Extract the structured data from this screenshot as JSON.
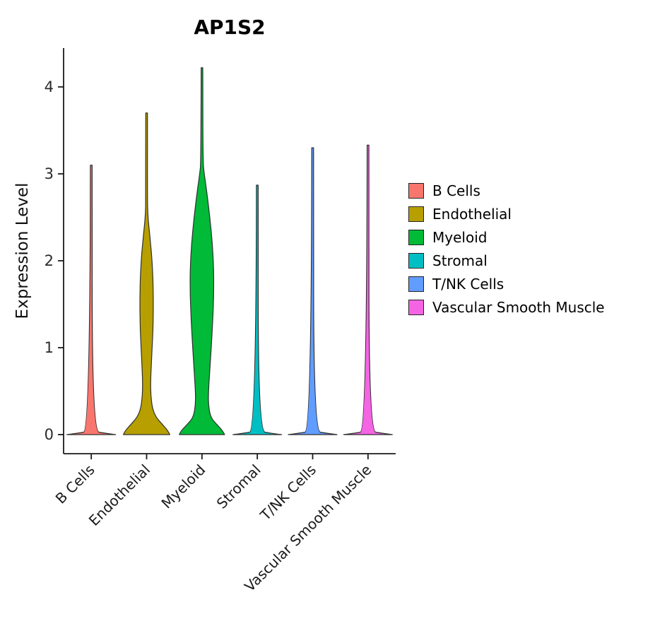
{
  "chart_data": {
    "type": "violin",
    "title": "AP1S2",
    "ylabel": "Expression Level",
    "xlabel": "",
    "y_axis": {
      "ticks": [
        0,
        1,
        2,
        3,
        4
      ],
      "range": [
        -0.2,
        4.55
      ],
      "grid": false
    },
    "categories": [
      "B Cells",
      "Endothelial",
      "Myeloid",
      "Stromal",
      "T/NK Cells",
      "Vascular Smooth Muscle"
    ],
    "legend_position": "right",
    "profile_format": "[expression_level, half_width_fraction_of_category_slot]",
    "series": [
      {
        "name": "B Cells",
        "color": "#F8766D",
        "max_expression": 3.1,
        "profile": [
          [
            0,
            0.44
          ],
          [
            0.015,
            0.26
          ],
          [
            0.04,
            0.019
          ],
          [
            3.1,
            0.016
          ]
        ]
      },
      {
        "name": "Endothelial",
        "color": "#B79F00",
        "max_expression": 3.7,
        "profile": [
          [
            0,
            0.42
          ],
          [
            0.05,
            0.38
          ],
          [
            0.12,
            0.28
          ],
          [
            0.2,
            0.17
          ],
          [
            0.3,
            0.105
          ],
          [
            0.45,
            0.075
          ],
          [
            0.6,
            0.072
          ],
          [
            0.8,
            0.085
          ],
          [
            1.0,
            0.1
          ],
          [
            1.2,
            0.115
          ],
          [
            1.5,
            0.122
          ],
          [
            1.8,
            0.115
          ],
          [
            2.0,
            0.098
          ],
          [
            2.2,
            0.072
          ],
          [
            2.4,
            0.04
          ],
          [
            2.55,
            0.02
          ],
          [
            2.7,
            0.015
          ],
          [
            3.7,
            0.015
          ]
        ]
      },
      {
        "name": "Myeloid",
        "color": "#00BA38",
        "max_expression": 4.22,
        "profile": [
          [
            0,
            0.41
          ],
          [
            0.05,
            0.37
          ],
          [
            0.12,
            0.26
          ],
          [
            0.2,
            0.155
          ],
          [
            0.35,
            0.115
          ],
          [
            0.5,
            0.118
          ],
          [
            0.7,
            0.137
          ],
          [
            1.0,
            0.168
          ],
          [
            1.3,
            0.194
          ],
          [
            1.6,
            0.213
          ],
          [
            1.9,
            0.213
          ],
          [
            2.2,
            0.188
          ],
          [
            2.5,
            0.143
          ],
          [
            2.8,
            0.086
          ],
          [
            3.0,
            0.04
          ],
          [
            3.15,
            0.018
          ],
          [
            4.22,
            0.015
          ]
        ]
      },
      {
        "name": "Stromal",
        "color": "#00BFC4",
        "max_expression": 2.87,
        "profile": [
          [
            0,
            0.44
          ],
          [
            0.015,
            0.26
          ],
          [
            0.04,
            0.019
          ],
          [
            2.87,
            0.016
          ]
        ]
      },
      {
        "name": "T/NK Cells",
        "color": "#619CFF",
        "max_expression": 3.3,
        "profile": [
          [
            0,
            0.44
          ],
          [
            0.015,
            0.26
          ],
          [
            0.04,
            0.019
          ],
          [
            3.3,
            0.016
          ]
        ]
      },
      {
        "name": "Vascular Smooth Muscle",
        "color": "#F564E3",
        "max_expression": 3.33,
        "profile": [
          [
            0,
            0.44
          ],
          [
            0.015,
            0.26
          ],
          [
            0.04,
            0.019
          ],
          [
            3.33,
            0.016
          ]
        ]
      }
    ],
    "legend": {
      "entries": [
        {
          "label": "B Cells",
          "color": "#F8766D"
        },
        {
          "label": "Endothelial",
          "color": "#B79F00"
        },
        {
          "label": "Myeloid",
          "color": "#00BA38"
        },
        {
          "label": "Stromal",
          "color": "#00BFC4"
        },
        {
          "label": "T/NK Cells",
          "color": "#619CFF"
        },
        {
          "label": "Vascular Smooth Muscle",
          "color": "#F564E3"
        }
      ]
    }
  },
  "style": {
    "axis_color": "#1a1a1a",
    "violin_outline_color": "#2f2f2f",
    "background": "#ffffff"
  }
}
